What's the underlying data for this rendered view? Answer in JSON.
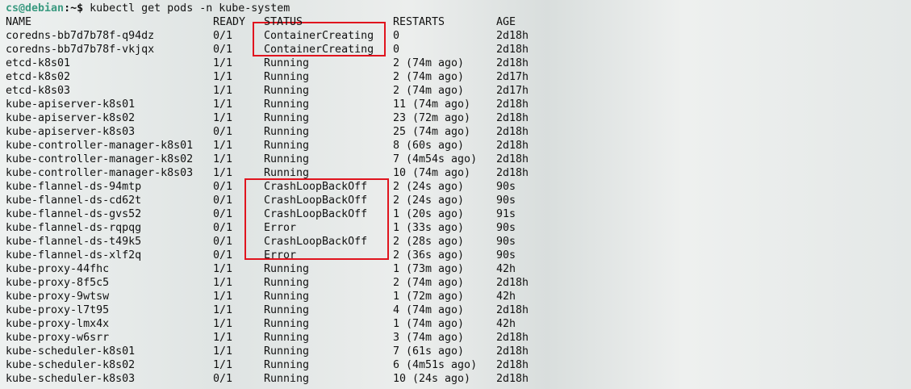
{
  "prompt": {
    "user": "cs@debian",
    "suffix": ":~$",
    "command": "kubectl get pods -n kube-system"
  },
  "table": {
    "header": [
      "NAME",
      "READY",
      "STATUS",
      "RESTARTS",
      "AGE"
    ],
    "rows": [
      [
        "coredns-bb7d7b78f-q94dz",
        "0/1",
        "ContainerCreating",
        "0",
        "2d18h"
      ],
      [
        "coredns-bb7d7b78f-vkjqx",
        "0/1",
        "ContainerCreating",
        "0",
        "2d18h"
      ],
      [
        "etcd-k8s01",
        "1/1",
        "Running",
        "2 (74m ago)",
        "2d18h"
      ],
      [
        "etcd-k8s02",
        "1/1",
        "Running",
        "2 (74m ago)",
        "2d17h"
      ],
      [
        "etcd-k8s03",
        "1/1",
        "Running",
        "2 (74m ago)",
        "2d17h"
      ],
      [
        "kube-apiserver-k8s01",
        "1/1",
        "Running",
        "11 (74m ago)",
        "2d18h"
      ],
      [
        "kube-apiserver-k8s02",
        "1/1",
        "Running",
        "23 (72m ago)",
        "2d18h"
      ],
      [
        "kube-apiserver-k8s03",
        "0/1",
        "Running",
        "25 (74m ago)",
        "2d18h"
      ],
      [
        "kube-controller-manager-k8s01",
        "1/1",
        "Running",
        "8 (60s ago)",
        "2d18h"
      ],
      [
        "kube-controller-manager-k8s02",
        "1/1",
        "Running",
        "7 (4m54s ago)",
        "2d18h"
      ],
      [
        "kube-controller-manager-k8s03",
        "1/1",
        "Running",
        "10 (74m ago)",
        "2d18h"
      ],
      [
        "kube-flannel-ds-94mtp",
        "0/1",
        "CrashLoopBackOff",
        "2 (24s ago)",
        "90s"
      ],
      [
        "kube-flannel-ds-cd62t",
        "0/1",
        "CrashLoopBackOff",
        "2 (24s ago)",
        "90s"
      ],
      [
        "kube-flannel-ds-gvs52",
        "0/1",
        "CrashLoopBackOff",
        "1 (20s ago)",
        "91s"
      ],
      [
        "kube-flannel-ds-rqpqg",
        "0/1",
        "Error",
        "1 (33s ago)",
        "90s"
      ],
      [
        "kube-flannel-ds-t49k5",
        "0/1",
        "CrashLoopBackOff",
        "2 (28s ago)",
        "90s"
      ],
      [
        "kube-flannel-ds-xlf2q",
        "0/1",
        "Error",
        "2 (36s ago)",
        "90s"
      ],
      [
        "kube-proxy-44fhc",
        "1/1",
        "Running",
        "1 (73m ago)",
        "42h"
      ],
      [
        "kube-proxy-8f5c5",
        "1/1",
        "Running",
        "2 (74m ago)",
        "2d18h"
      ],
      [
        "kube-proxy-9wtsw",
        "1/1",
        "Running",
        "1 (72m ago)",
        "42h"
      ],
      [
        "kube-proxy-l7t95",
        "1/1",
        "Running",
        "4 (74m ago)",
        "2d18h"
      ],
      [
        "kube-proxy-lmx4x",
        "1/1",
        "Running",
        "1 (74m ago)",
        "42h"
      ],
      [
        "kube-proxy-w6srr",
        "1/1",
        "Running",
        "3 (74m ago)",
        "2d18h"
      ],
      [
        "kube-scheduler-k8s01",
        "1/1",
        "Running",
        "7 (61s ago)",
        "2d18h"
      ],
      [
        "kube-scheduler-k8s02",
        "1/1",
        "Running",
        "6 (4m51s ago)",
        "2d18h"
      ],
      [
        "kube-scheduler-k8s03",
        "0/1",
        "Running",
        "10 (24s ago)",
        "2d18h"
      ]
    ]
  }
}
